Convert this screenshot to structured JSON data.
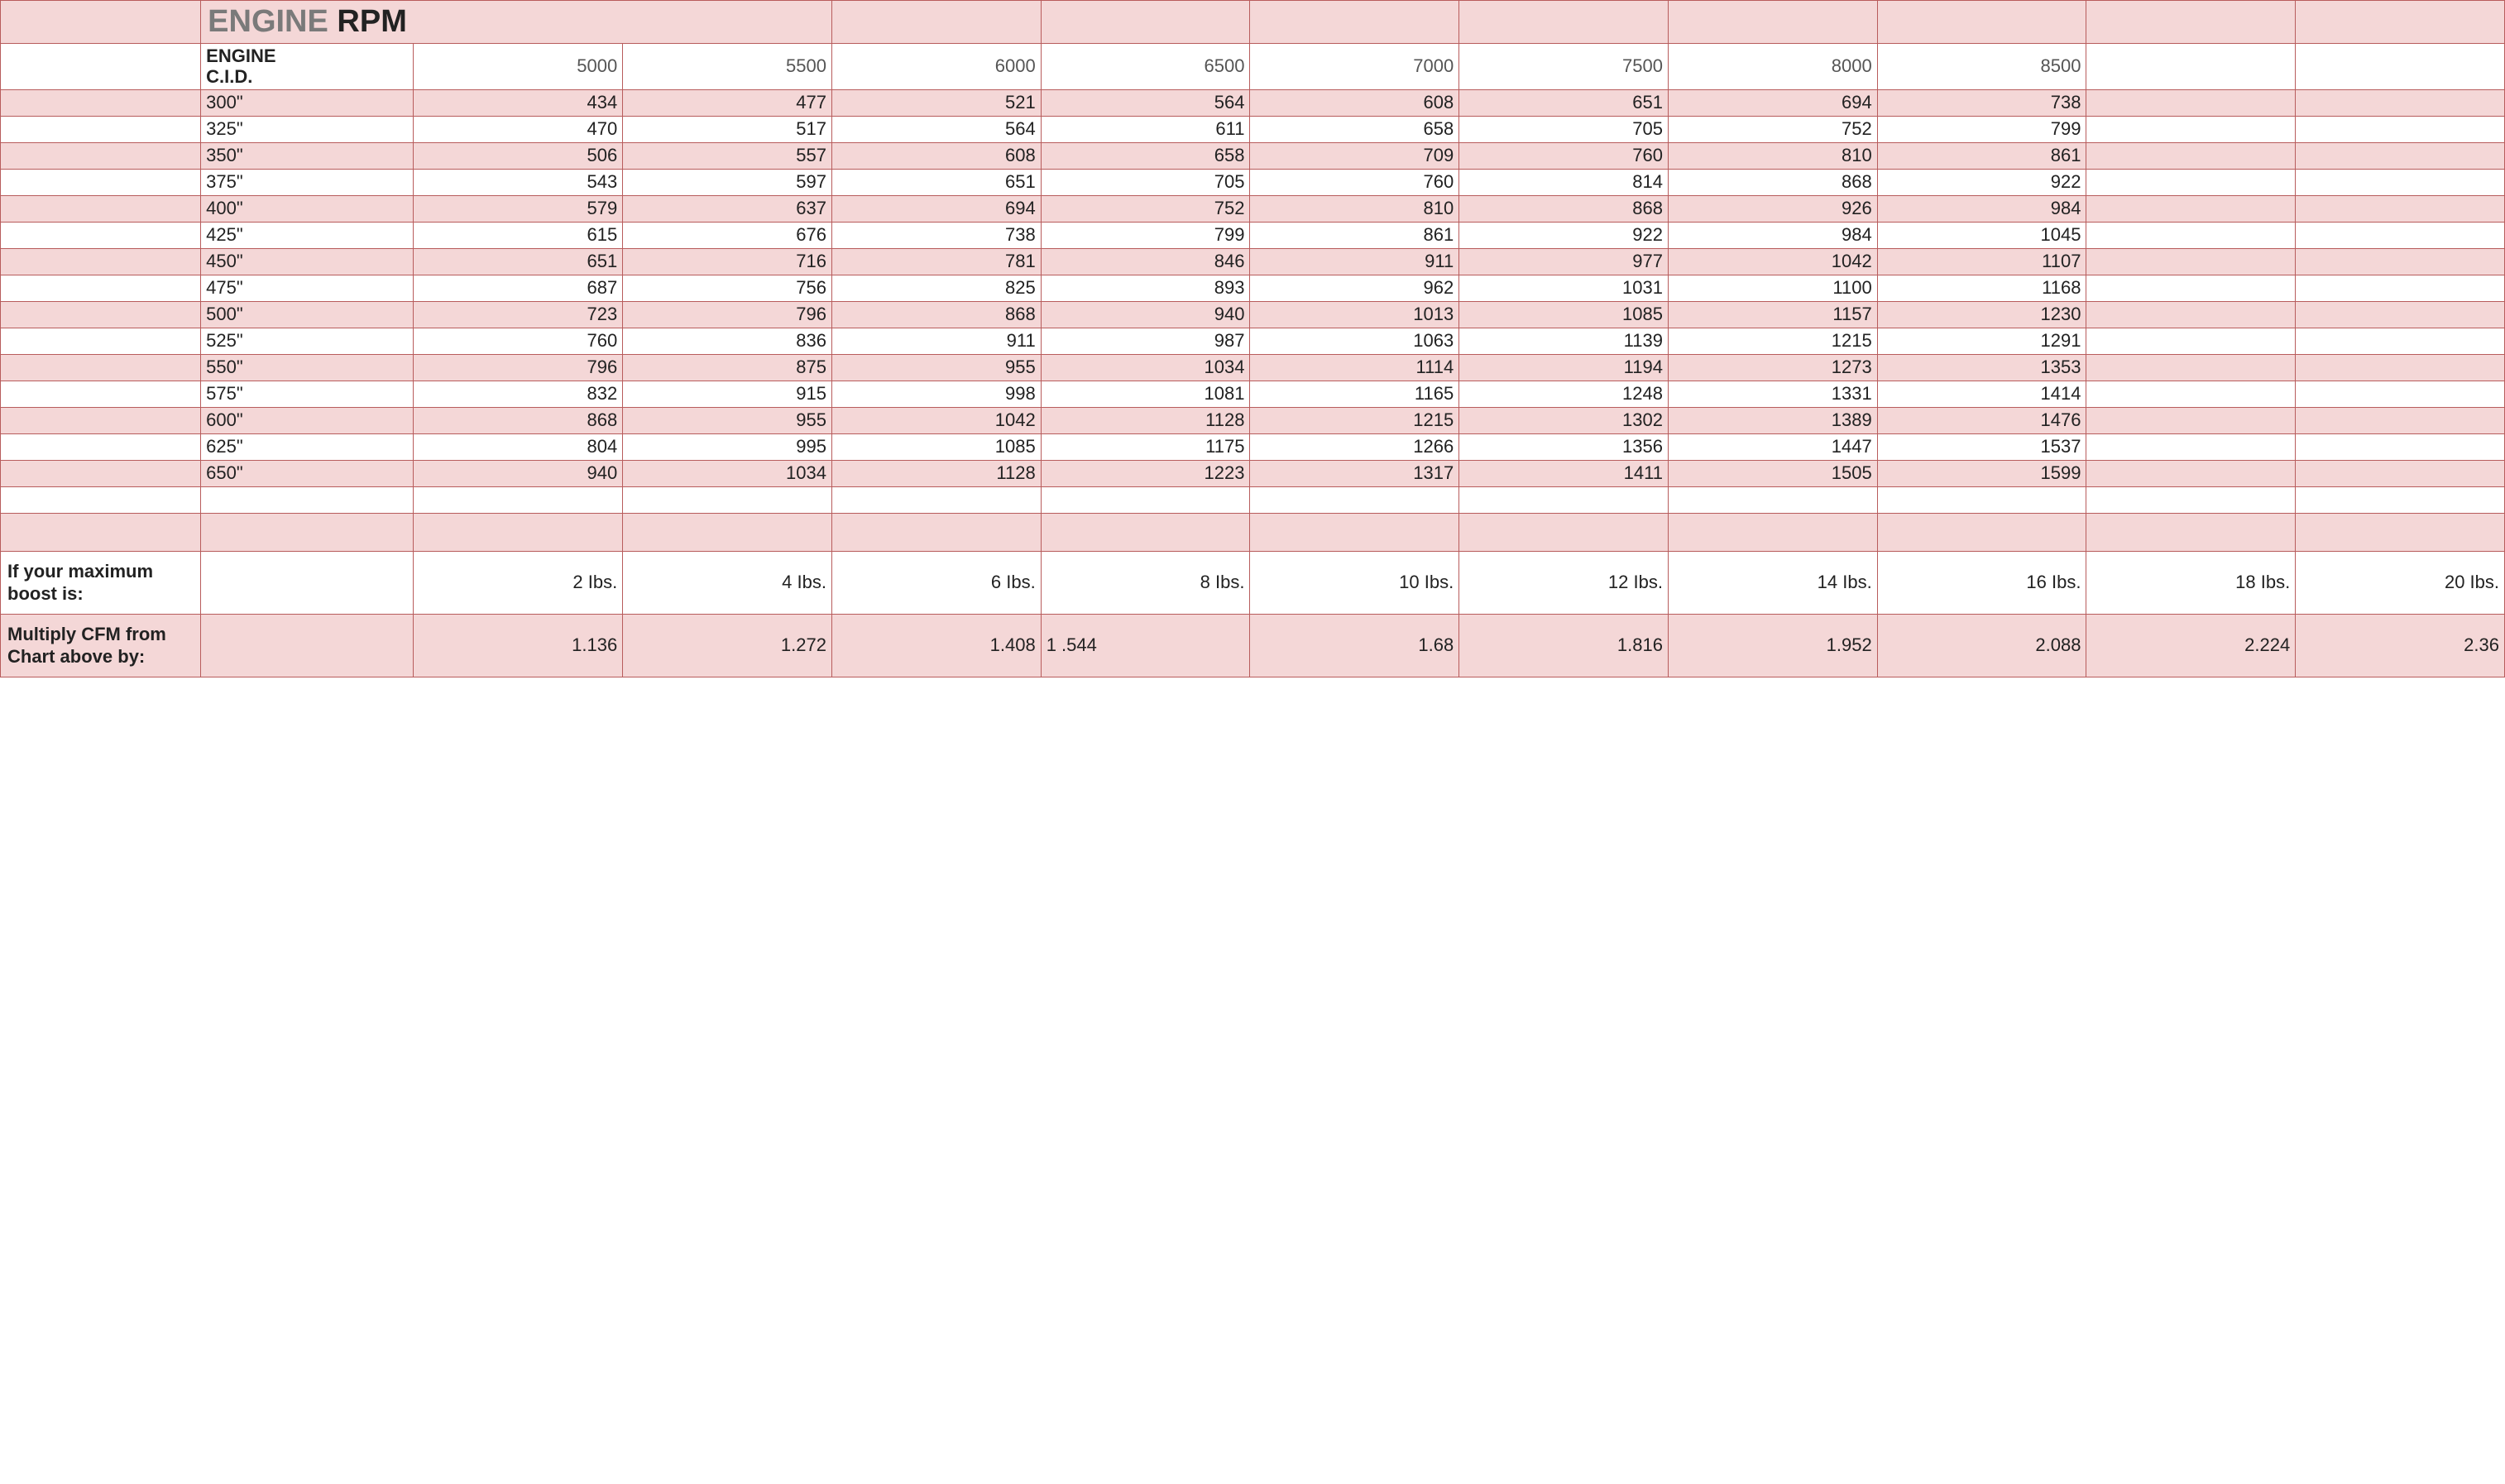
{
  "type": "table",
  "colors": {
    "border": "#b85c5c",
    "pink_row": "#f4d7d7",
    "white_row": "#ffffff",
    "title_grey": "#7a7a7a",
    "text_dark": "#222222",
    "text_grey": "#555555"
  },
  "fonts": {
    "title_size_pt": 28,
    "cell_size_pt": 16,
    "label_size_pt": 16
  },
  "title": {
    "part1": "ENGINE ",
    "part2": "RPM"
  },
  "header_label": "ENGINE C.I.D.",
  "rpm_columns": [
    "5000",
    "5500",
    "6000",
    "6500",
    "7000",
    "7500",
    "8000",
    "8500"
  ],
  "rows": [
    {
      "cid": "300\"",
      "vals": [
        "434",
        "477",
        "521",
        "564",
        "608",
        "651",
        "694",
        "738"
      ]
    },
    {
      "cid": "325\"",
      "vals": [
        "470",
        "517",
        "564",
        "611",
        "658",
        "705",
        "752",
        "799"
      ]
    },
    {
      "cid": "350\"",
      "vals": [
        "506",
        "557",
        "608",
        "658",
        "709",
        "760",
        "810",
        "861"
      ]
    },
    {
      "cid": "375\"",
      "vals": [
        "543",
        "597",
        "651",
        "705",
        "760",
        "814",
        "868",
        "922"
      ]
    },
    {
      "cid": "400\"",
      "vals": [
        "579",
        "637",
        "694",
        "752",
        "810",
        "868",
        "926",
        "984"
      ]
    },
    {
      "cid": "425\"",
      "vals": [
        "615",
        "676",
        "738",
        "799",
        "861",
        "922",
        "984",
        "1045"
      ]
    },
    {
      "cid": "450\"",
      "vals": [
        "651",
        "716",
        "781",
        "846",
        "911",
        "977",
        "1042",
        "1107"
      ]
    },
    {
      "cid": "475\"",
      "vals": [
        "687",
        "756",
        "825",
        "893",
        "962",
        "1031",
        "1100",
        "1168"
      ]
    },
    {
      "cid": "500\"",
      "vals": [
        "723",
        "796",
        "868",
        "940",
        "1013",
        "1085",
        "1157",
        "1230"
      ]
    },
    {
      "cid": "525\"",
      "vals": [
        "760",
        "836",
        "911",
        "987",
        "1063",
        "1139",
        "1215",
        "1291"
      ]
    },
    {
      "cid": "550\"",
      "vals": [
        "796",
        "875",
        "955",
        "1034",
        "1114",
        "1194",
        "1273",
        "1353"
      ]
    },
    {
      "cid": "575\"",
      "vals": [
        "832",
        "915",
        "998",
        "1081",
        "1165",
        "1248",
        "1331",
        "1414"
      ]
    },
    {
      "cid": "600\"",
      "vals": [
        "868",
        "955",
        "1042",
        "1128",
        "1215",
        "1302",
        "1389",
        "1476"
      ]
    },
    {
      "cid": "625\"",
      "vals": [
        "804",
        "995",
        "1085",
        "1175",
        "1266",
        "1356",
        "1447",
        "1537"
      ]
    },
    {
      "cid": "650\"",
      "vals": [
        "940",
        "1034",
        "1128",
        "1223",
        "1317",
        "1411",
        "1505",
        "1599"
      ]
    }
  ],
  "boost": {
    "label": "If your maximum boost is:",
    "vals": [
      "2 Ibs.",
      "4 Ibs.",
      "6 Ibs.",
      "8 Ibs.",
      "10 Ibs.",
      "12 Ibs.",
      "14 Ibs.",
      "16 Ibs.",
      "18 Ibs.",
      "20 Ibs."
    ]
  },
  "multiplier": {
    "label": "Multiply CFM from Chart above by:",
    "vals": [
      "1.136",
      "1.272",
      "1.408",
      "1 .544",
      "1.68",
      "1.816",
      "1.952",
      "2.088",
      "2.224",
      "2.36"
    ]
  }
}
